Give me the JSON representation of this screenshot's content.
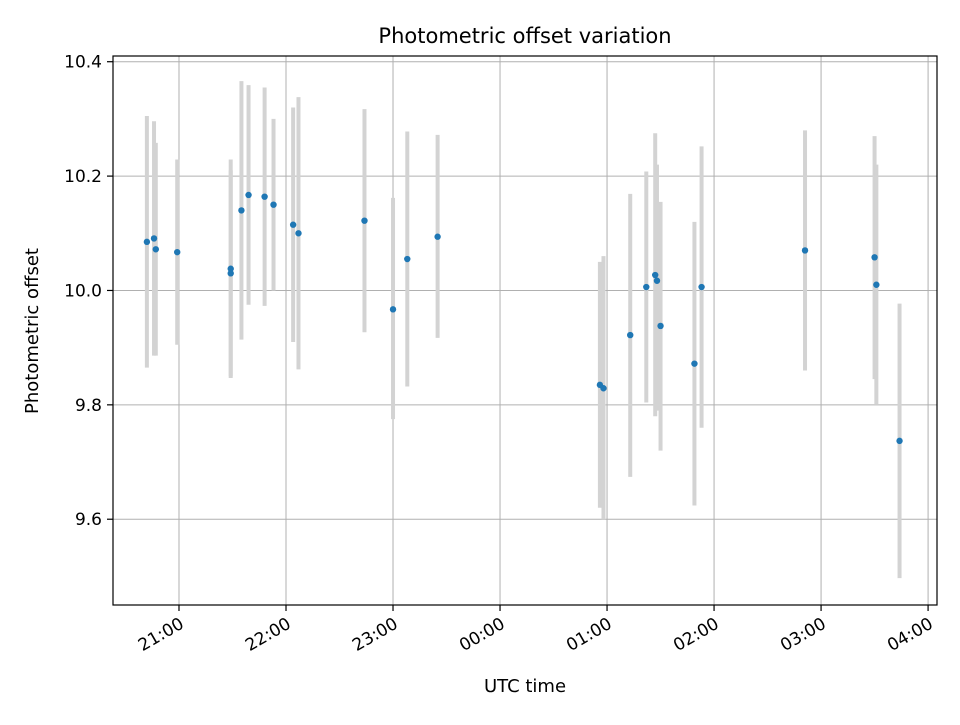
{
  "chart_data": {
    "type": "scatter",
    "title": "Photometric offset variation",
    "xlabel": "UTC time",
    "ylabel": "Photometric offset",
    "x_axis_type": "time",
    "xlim": [
      "20:23",
      "04:05"
    ],
    "ylim": [
      9.45,
      10.41
    ],
    "xticks": [
      "21:00",
      "22:00",
      "23:00",
      "00:00",
      "01:00",
      "02:00",
      "03:00",
      "04:00"
    ],
    "yticks": [
      "9.6",
      "9.8",
      "10.0",
      "10.2",
      "10.4"
    ],
    "yticks_values": [
      9.6,
      9.8,
      10.0,
      10.2,
      10.4
    ],
    "grid": true,
    "marker_color": "#1f77b4",
    "errorbar_color": "#d3d3d3",
    "points": [
      {
        "t": "20:42",
        "y": 10.085,
        "lo": 9.865,
        "hi": 10.305
      },
      {
        "t": "20:46",
        "y": 10.091,
        "lo": 9.886,
        "hi": 10.296
      },
      {
        "t": "20:47",
        "y": 10.072,
        "lo": 9.886,
        "hi": 10.258
      },
      {
        "t": "20:59",
        "y": 10.067,
        "lo": 9.905,
        "hi": 10.229
      },
      {
        "t": "21:29",
        "y": 10.038,
        "lo": 9.847,
        "hi": 10.229
      },
      {
        "t": "21:29",
        "y": 10.03,
        "lo": 9.85,
        "hi": 10.21
      },
      {
        "t": "21:35",
        "y": 10.14,
        "lo": 9.914,
        "hi": 10.366
      },
      {
        "t": "21:39",
        "y": 10.167,
        "lo": 9.975,
        "hi": 10.359
      },
      {
        "t": "21:48",
        "y": 10.164,
        "lo": 9.973,
        "hi": 10.355
      },
      {
        "t": "21:53",
        "y": 10.15,
        "lo": 10.0,
        "hi": 10.3
      },
      {
        "t": "22:04",
        "y": 10.115,
        "lo": 9.91,
        "hi": 10.32
      },
      {
        "t": "22:07",
        "y": 10.1,
        "lo": 9.862,
        "hi": 10.338
      },
      {
        "t": "22:44",
        "y": 10.122,
        "lo": 9.927,
        "hi": 10.317
      },
      {
        "t": "23:00",
        "y": 9.967,
        "lo": 9.775,
        "hi": 10.162
      },
      {
        "t": "23:08",
        "y": 10.055,
        "lo": 9.832,
        "hi": 10.278
      },
      {
        "t": "23:25",
        "y": 10.094,
        "lo": 9.917,
        "hi": 10.272
      },
      {
        "t": "00:56",
        "y": 9.835,
        "lo": 9.62,
        "hi": 10.05
      },
      {
        "t": "00:58",
        "y": 9.829,
        "lo": 9.6,
        "hi": 10.06
      },
      {
        "t": "01:13",
        "y": 9.922,
        "lo": 9.674,
        "hi": 10.169
      },
      {
        "t": "01:22",
        "y": 10.006,
        "lo": 9.804,
        "hi": 10.208
      },
      {
        "t": "01:27",
        "y": 10.027,
        "lo": 9.78,
        "hi": 10.275
      },
      {
        "t": "01:28",
        "y": 10.017,
        "lo": 9.79,
        "hi": 10.22
      },
      {
        "t": "01:30",
        "y": 9.938,
        "lo": 9.72,
        "hi": 10.155
      },
      {
        "t": "01:49",
        "y": 9.872,
        "lo": 9.624,
        "hi": 10.12
      },
      {
        "t": "01:53",
        "y": 10.006,
        "lo": 9.76,
        "hi": 10.252
      },
      {
        "t": "02:51",
        "y": 10.07,
        "lo": 9.86,
        "hi": 10.28
      },
      {
        "t": "03:30",
        "y": 10.058,
        "lo": 9.845,
        "hi": 10.27
      },
      {
        "t": "03:31",
        "y": 10.01,
        "lo": 9.8,
        "hi": 10.22
      },
      {
        "t": "03:44",
        "y": 9.737,
        "lo": 9.497,
        "hi": 9.977
      }
    ]
  }
}
